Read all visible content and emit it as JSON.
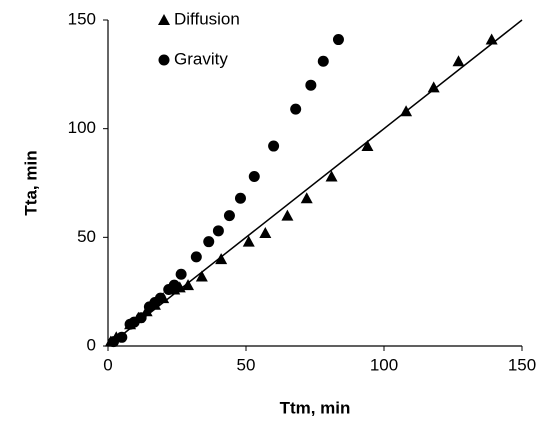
{
  "chart_data": {
    "type": "scatter",
    "x_label": "Ttm, min",
    "y_label": "Tta, min",
    "xlim": [
      0,
      150
    ],
    "ylim": [
      0,
      150
    ],
    "xticks": [
      0,
      50,
      100,
      150
    ],
    "yticks": [
      0,
      50,
      100,
      150
    ],
    "grid": false,
    "legend": "top-left",
    "series": [
      {
        "name": "Diffusion",
        "color": "#000000",
        "marker": "triangle",
        "x": [
          1,
          3,
          8,
          11,
          14,
          17,
          20,
          24,
          26,
          29,
          34,
          41,
          51,
          57,
          65,
          72,
          81,
          94,
          108,
          118,
          127,
          139
        ],
        "values": [
          2,
          4,
          10,
          13,
          16,
          19,
          22,
          26,
          27,
          28,
          32,
          40,
          48,
          52,
          60,
          68,
          78,
          92,
          108,
          119,
          131,
          141
        ]
      },
      {
        "name": "Gravity",
        "color": "#000000",
        "marker": "circle",
        "x": [
          2,
          5,
          8,
          9.5,
          12,
          15,
          17,
          19,
          22,
          24,
          26.5,
          32,
          36.5,
          40,
          44,
          48,
          53,
          60,
          68,
          73.5,
          78,
          83.5
        ],
        "values": [
          2,
          4,
          10,
          11,
          13,
          18,
          20,
          22,
          26,
          28,
          33,
          41,
          48,
          53,
          60,
          68,
          78,
          92,
          109,
          120,
          131,
          141
        ]
      }
    ],
    "fit_line": {
      "color": "#000000",
      "x": [
        0,
        150
      ],
      "values": [
        0,
        150
      ]
    }
  }
}
